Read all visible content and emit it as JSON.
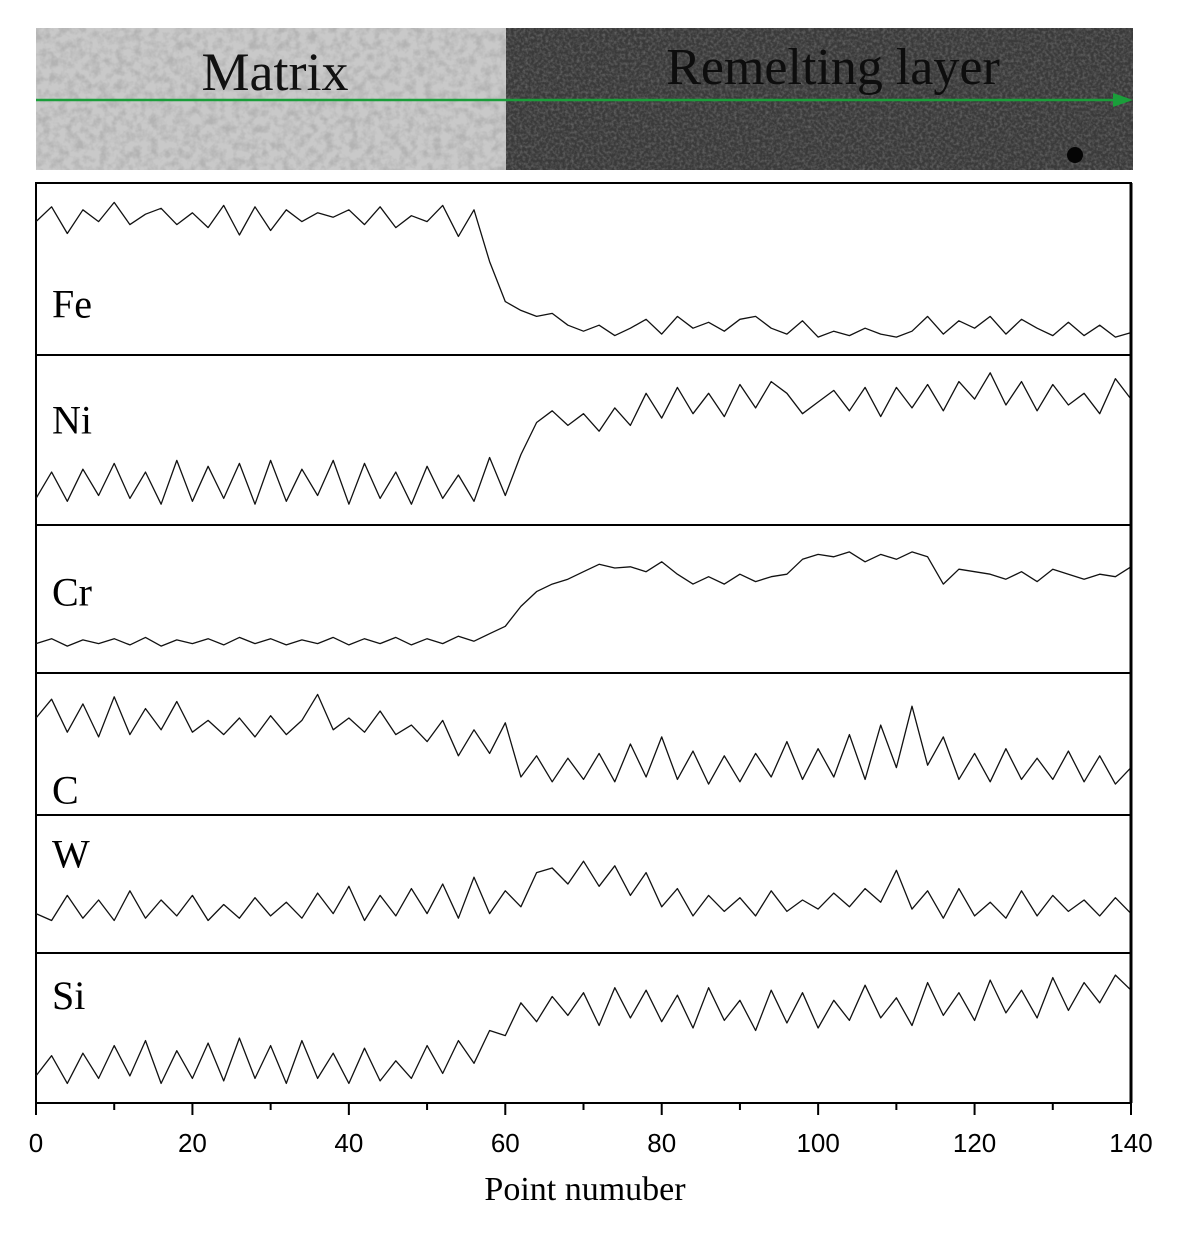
{
  "image_strip": {
    "left_label": "Matrix",
    "right_label": "Remelting layer",
    "line_color": "#1a9e3a"
  },
  "chart_data": {
    "type": "line",
    "xlabel": "Point numuber",
    "xlim": [
      0,
      140
    ],
    "xticks": [
      0,
      20,
      40,
      60,
      80,
      100,
      120,
      140
    ],
    "ylim": [
      0,
      1
    ],
    "series": [
      {
        "name": "Fe",
        "x_points": [
          0,
          2,
          4,
          6,
          8,
          10,
          12,
          14,
          16,
          18,
          20,
          22,
          24,
          26,
          28,
          30,
          32,
          34,
          36,
          38,
          40,
          42,
          44,
          46,
          48,
          50,
          52,
          54,
          56,
          58,
          60,
          62,
          64,
          66,
          68,
          70,
          72,
          74,
          76,
          78,
          80,
          82,
          84,
          86,
          88,
          90,
          92,
          94,
          96,
          98,
          100,
          102,
          104,
          106,
          108,
          110,
          112,
          114,
          116,
          118,
          120,
          122,
          124,
          126,
          128,
          130,
          132,
          134,
          136,
          138,
          140
        ],
        "values": [
          0.82,
          0.92,
          0.74,
          0.9,
          0.82,
          0.95,
          0.8,
          0.87,
          0.91,
          0.8,
          0.88,
          0.78,
          0.93,
          0.73,
          0.92,
          0.76,
          0.9,
          0.82,
          0.88,
          0.85,
          0.9,
          0.8,
          0.92,
          0.78,
          0.86,
          0.82,
          0.93,
          0.72,
          0.9,
          0.55,
          0.28,
          0.22,
          0.18,
          0.2,
          0.12,
          0.08,
          0.12,
          0.05,
          0.1,
          0.16,
          0.06,
          0.18,
          0.1,
          0.14,
          0.08,
          0.16,
          0.18,
          0.1,
          0.06,
          0.15,
          0.04,
          0.08,
          0.05,
          0.1,
          0.06,
          0.04,
          0.08,
          0.18,
          0.06,
          0.15,
          0.1,
          0.18,
          0.06,
          0.16,
          0.1,
          0.05,
          0.14,
          0.05,
          0.12,
          0.04,
          0.07
        ]
      },
      {
        "name": "Ni",
        "x_points": [
          0,
          2,
          4,
          6,
          8,
          10,
          12,
          14,
          16,
          18,
          20,
          22,
          24,
          26,
          28,
          30,
          32,
          34,
          36,
          38,
          40,
          42,
          44,
          46,
          48,
          50,
          52,
          54,
          56,
          58,
          60,
          62,
          64,
          66,
          68,
          70,
          72,
          74,
          76,
          78,
          80,
          82,
          84,
          86,
          88,
          90,
          92,
          94,
          96,
          98,
          100,
          102,
          104,
          106,
          108,
          110,
          112,
          114,
          116,
          118,
          120,
          122,
          124,
          126,
          128,
          130,
          132,
          134,
          136,
          138,
          140
        ],
        "values": [
          0.1,
          0.28,
          0.08,
          0.3,
          0.12,
          0.34,
          0.1,
          0.28,
          0.06,
          0.36,
          0.08,
          0.32,
          0.1,
          0.34,
          0.06,
          0.36,
          0.08,
          0.3,
          0.12,
          0.36,
          0.06,
          0.34,
          0.1,
          0.28,
          0.06,
          0.32,
          0.1,
          0.26,
          0.08,
          0.38,
          0.12,
          0.4,
          0.62,
          0.7,
          0.6,
          0.68,
          0.56,
          0.72,
          0.6,
          0.82,
          0.65,
          0.86,
          0.68,
          0.82,
          0.66,
          0.88,
          0.72,
          0.9,
          0.82,
          0.68,
          0.76,
          0.84,
          0.7,
          0.86,
          0.66,
          0.86,
          0.72,
          0.88,
          0.7,
          0.9,
          0.78,
          0.96,
          0.74,
          0.9,
          0.7,
          0.88,
          0.74,
          0.82,
          0.68,
          0.92,
          0.78
        ]
      },
      {
        "name": "Cr",
        "x_points": [
          0,
          2,
          4,
          6,
          8,
          10,
          12,
          14,
          16,
          18,
          20,
          22,
          24,
          26,
          28,
          30,
          32,
          34,
          36,
          38,
          40,
          42,
          44,
          46,
          48,
          50,
          52,
          54,
          56,
          58,
          60,
          62,
          64,
          66,
          68,
          70,
          72,
          74,
          76,
          78,
          80,
          82,
          84,
          86,
          88,
          90,
          92,
          94,
          96,
          98,
          100,
          102,
          104,
          106,
          108,
          110,
          112,
          114,
          116,
          118,
          120,
          122,
          124,
          126,
          128,
          130,
          132,
          134,
          136,
          138,
          140
        ],
        "values": [
          0.14,
          0.18,
          0.12,
          0.17,
          0.14,
          0.18,
          0.13,
          0.19,
          0.12,
          0.17,
          0.14,
          0.18,
          0.13,
          0.19,
          0.14,
          0.18,
          0.13,
          0.17,
          0.14,
          0.19,
          0.13,
          0.18,
          0.14,
          0.19,
          0.13,
          0.18,
          0.14,
          0.2,
          0.16,
          0.22,
          0.28,
          0.44,
          0.56,
          0.62,
          0.66,
          0.72,
          0.78,
          0.75,
          0.76,
          0.72,
          0.8,
          0.7,
          0.62,
          0.68,
          0.62,
          0.7,
          0.64,
          0.68,
          0.7,
          0.82,
          0.86,
          0.84,
          0.88,
          0.8,
          0.86,
          0.82,
          0.88,
          0.84,
          0.62,
          0.74,
          0.72,
          0.7,
          0.66,
          0.72,
          0.64,
          0.74,
          0.7,
          0.66,
          0.7,
          0.68,
          0.76
        ]
      },
      {
        "name": "C",
        "x_points": [
          0,
          2,
          4,
          6,
          8,
          10,
          12,
          14,
          16,
          18,
          20,
          22,
          24,
          26,
          28,
          30,
          32,
          34,
          36,
          38,
          40,
          42,
          44,
          46,
          48,
          50,
          52,
          54,
          56,
          58,
          60,
          62,
          64,
          66,
          68,
          70,
          72,
          74,
          76,
          78,
          80,
          82,
          84,
          86,
          88,
          90,
          92,
          94,
          96,
          98,
          100,
          102,
          104,
          106,
          108,
          110,
          112,
          114,
          116,
          118,
          120,
          122,
          124,
          126,
          128,
          130,
          132,
          134,
          136,
          138,
          140
        ],
        "values": [
          0.72,
          0.88,
          0.6,
          0.84,
          0.56,
          0.9,
          0.58,
          0.8,
          0.62,
          0.86,
          0.6,
          0.7,
          0.58,
          0.72,
          0.56,
          0.74,
          0.58,
          0.7,
          0.92,
          0.62,
          0.72,
          0.6,
          0.78,
          0.58,
          0.66,
          0.52,
          0.7,
          0.4,
          0.62,
          0.42,
          0.68,
          0.22,
          0.4,
          0.18,
          0.38,
          0.2,
          0.42,
          0.18,
          0.5,
          0.22,
          0.56,
          0.2,
          0.44,
          0.16,
          0.4,
          0.18,
          0.42,
          0.22,
          0.52,
          0.2,
          0.46,
          0.22,
          0.58,
          0.2,
          0.66,
          0.3,
          0.82,
          0.32,
          0.56,
          0.2,
          0.42,
          0.18,
          0.46,
          0.2,
          0.38,
          0.2,
          0.44,
          0.18,
          0.4,
          0.16,
          0.3
        ]
      },
      {
        "name": "W",
        "x_points": [
          0,
          2,
          4,
          6,
          8,
          10,
          12,
          14,
          16,
          18,
          20,
          22,
          24,
          26,
          28,
          30,
          32,
          34,
          36,
          38,
          40,
          42,
          44,
          46,
          48,
          50,
          52,
          54,
          56,
          58,
          60,
          62,
          64,
          66,
          68,
          70,
          72,
          74,
          76,
          78,
          80,
          82,
          84,
          86,
          88,
          90,
          92,
          94,
          96,
          98,
          100,
          102,
          104,
          106,
          108,
          110,
          112,
          114,
          116,
          118,
          120,
          122,
          124,
          126,
          128,
          130,
          132,
          134,
          136,
          138,
          140
        ],
        "values": [
          0.24,
          0.18,
          0.4,
          0.2,
          0.36,
          0.18,
          0.44,
          0.2,
          0.36,
          0.22,
          0.4,
          0.18,
          0.32,
          0.2,
          0.38,
          0.22,
          0.34,
          0.2,
          0.42,
          0.24,
          0.48,
          0.18,
          0.4,
          0.22,
          0.46,
          0.24,
          0.5,
          0.2,
          0.56,
          0.24,
          0.44,
          0.3,
          0.6,
          0.64,
          0.5,
          0.7,
          0.48,
          0.66,
          0.4,
          0.6,
          0.3,
          0.46,
          0.22,
          0.4,
          0.26,
          0.38,
          0.22,
          0.44,
          0.26,
          0.36,
          0.28,
          0.42,
          0.3,
          0.46,
          0.34,
          0.62,
          0.28,
          0.44,
          0.2,
          0.46,
          0.22,
          0.34,
          0.2,
          0.44,
          0.22,
          0.4,
          0.26,
          0.36,
          0.22,
          0.38,
          0.24
        ]
      },
      {
        "name": "Si",
        "x_points": [
          0,
          2,
          4,
          6,
          8,
          10,
          12,
          14,
          16,
          18,
          20,
          22,
          24,
          26,
          28,
          30,
          32,
          34,
          36,
          38,
          40,
          42,
          44,
          46,
          48,
          50,
          52,
          54,
          56,
          58,
          60,
          62,
          64,
          66,
          68,
          70,
          72,
          74,
          76,
          78,
          80,
          82,
          84,
          86,
          88,
          90,
          92,
          94,
          96,
          98,
          100,
          102,
          104,
          106,
          108,
          110,
          112,
          114,
          116,
          118,
          120,
          122,
          124,
          126,
          128,
          130,
          132,
          134,
          136,
          138,
          140
        ],
        "values": [
          0.12,
          0.28,
          0.06,
          0.3,
          0.1,
          0.36,
          0.12,
          0.4,
          0.06,
          0.32,
          0.1,
          0.38,
          0.08,
          0.42,
          0.1,
          0.36,
          0.06,
          0.4,
          0.1,
          0.3,
          0.06,
          0.34,
          0.08,
          0.24,
          0.1,
          0.36,
          0.14,
          0.4,
          0.22,
          0.48,
          0.44,
          0.7,
          0.55,
          0.75,
          0.6,
          0.78,
          0.52,
          0.82,
          0.58,
          0.8,
          0.55,
          0.76,
          0.5,
          0.82,
          0.56,
          0.72,
          0.48,
          0.8,
          0.54,
          0.78,
          0.5,
          0.72,
          0.56,
          0.84,
          0.58,
          0.74,
          0.52,
          0.86,
          0.6,
          0.78,
          0.56,
          0.88,
          0.62,
          0.8,
          0.58,
          0.9,
          0.64,
          0.86,
          0.7,
          0.92,
          0.8
        ]
      }
    ]
  }
}
